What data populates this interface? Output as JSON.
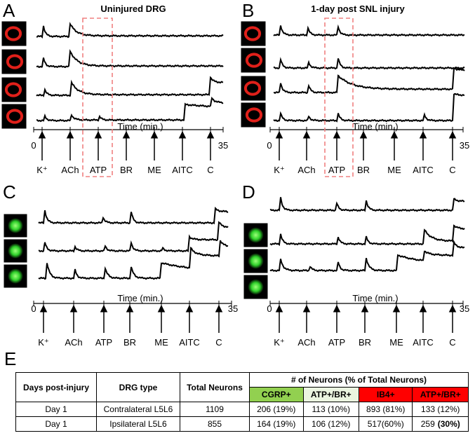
{
  "panels": [
    {
      "letter": "A",
      "title": "Uninjured DRG",
      "axis_label": "Time (min.)",
      "axis_start": "0",
      "axis_end": "35",
      "stimuli": [
        "K⁺",
        "ACh",
        "ATP",
        "BR",
        "ME",
        "AITC",
        "C"
      ]
    },
    {
      "letter": "B",
      "title": "1-day post SNL injury",
      "axis_label": "Time (min.)",
      "axis_start": "0",
      "axis_end": "35",
      "stimuli": [
        "K⁺",
        "ACh",
        "ATP",
        "BR",
        "ME",
        "AITC",
        "C"
      ]
    },
    {
      "letter": "C",
      "axis_label": "Time (min.)",
      "axis_start": "0",
      "axis_end": "35",
      "stimuli": [
        "K⁺",
        "ACh",
        "ATP",
        "BR",
        "ME",
        "AITC",
        "C"
      ]
    },
    {
      "letter": "D",
      "axis_label": "Time (min.)",
      "axis_start": "0",
      "axis_end": "35",
      "stimuli": [
        "K⁺",
        "ACh",
        "ATP",
        "BR",
        "ME",
        "AITC",
        "C"
      ]
    }
  ],
  "table": {
    "letter": "E",
    "headers": [
      "Days post-injury",
      "DRG type",
      "Total Neurons",
      "# of Neurons (% of Total Neurons)"
    ],
    "subheaders": [
      "CGRP+",
      "ATP+/BR+",
      "IB4+",
      "ATP+/BR+"
    ],
    "rows": [
      [
        "Day 1",
        "Contralateral L5L6",
        "1109",
        "206 (19%)",
        "113 (10%)",
        "893 (81%)",
        "133 (12%)"
      ],
      [
        "Day 1",
        "Ipsilateral L5L6",
        "855",
        "164 (19%)",
        "106 (12%)",
        "517(60%)",
        {
          "text": "259",
          "emphasis": "(30%)"
        }
      ]
    ]
  }
}
